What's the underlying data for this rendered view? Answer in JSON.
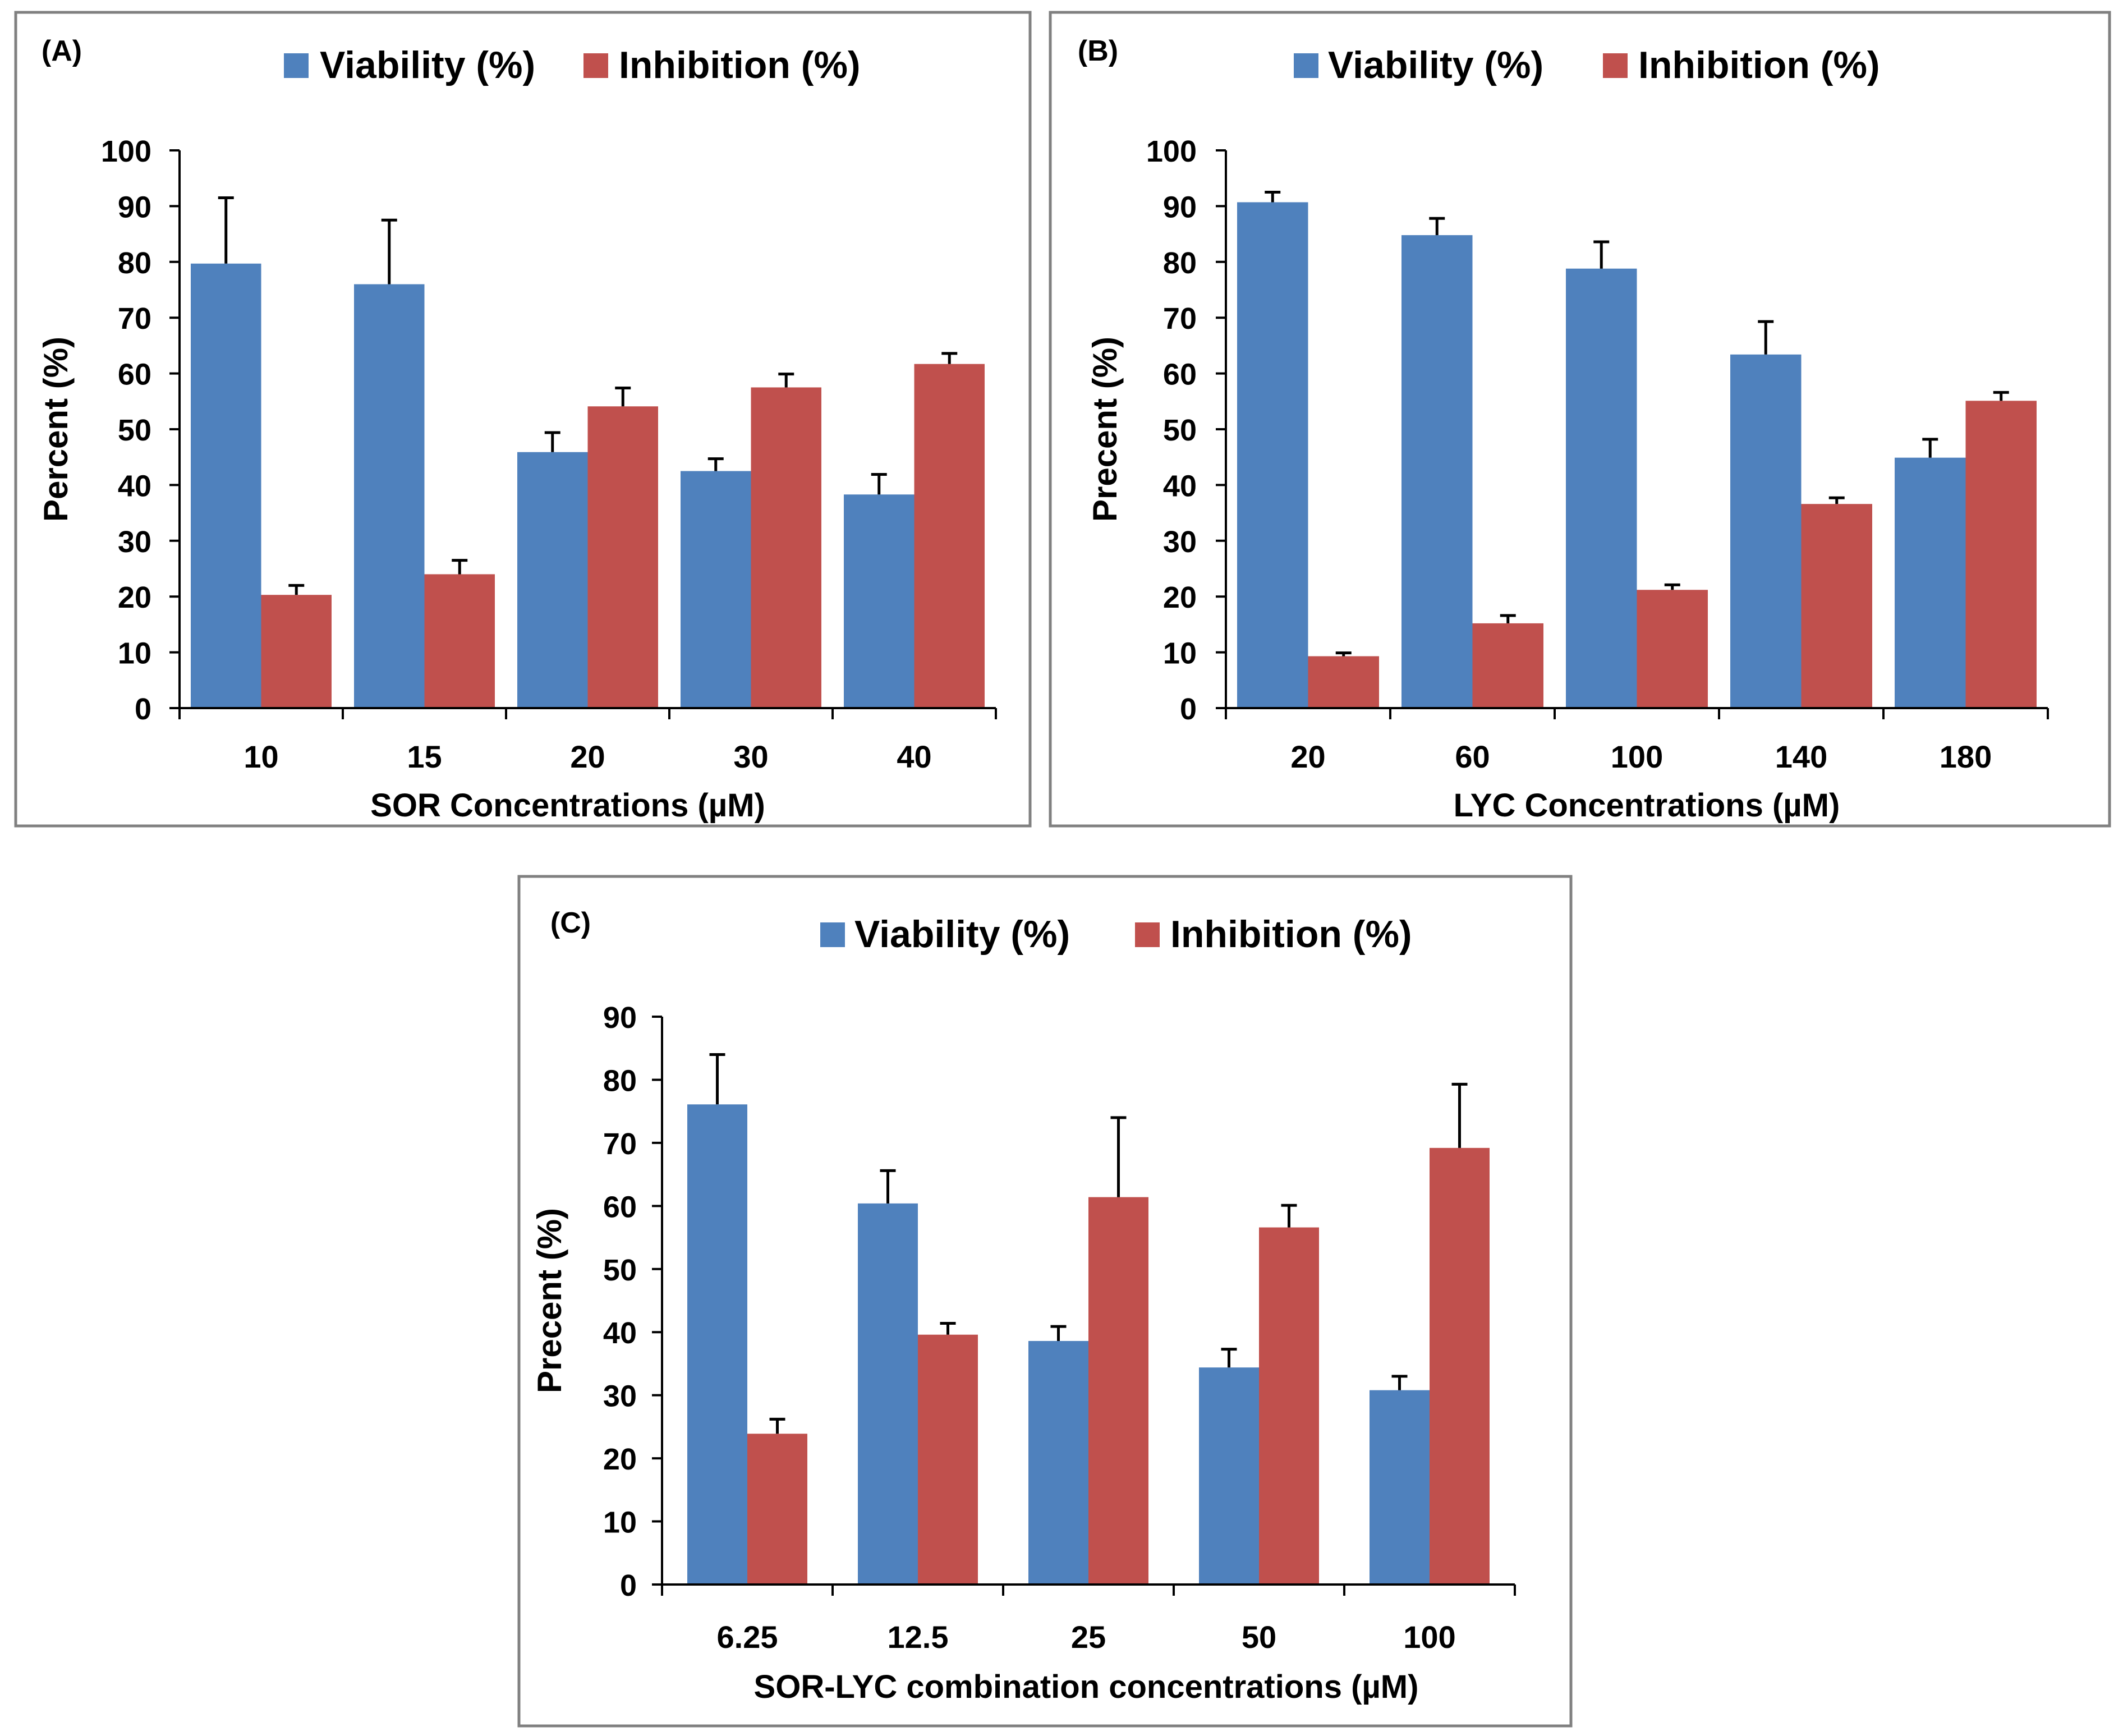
{
  "colors": {
    "viability": "#4F81BD",
    "inhibition": "#C0504D",
    "panel_border": "#808080",
    "axis": "#000000"
  },
  "chart_data": [
    {
      "type": "bar",
      "panel_label": "(A)",
      "xlabel": "SOR Concentrations (µM)",
      "ylabel": "Percent (%)",
      "ylim": [
        0,
        100
      ],
      "yticks": [
        0,
        10,
        20,
        30,
        40,
        50,
        60,
        70,
        80,
        90,
        100
      ],
      "categories": [
        "10",
        "15",
        "20",
        "30",
        "40"
      ],
      "legend_position": "top",
      "series": [
        {
          "name": "Viability (%)",
          "color_key": "viability",
          "values": [
            79.7,
            76.0,
            45.9,
            42.5,
            38.3
          ],
          "errors": [
            11.8,
            11.5,
            3.5,
            2.2,
            3.6
          ]
        },
        {
          "name": "Inhibition (%)",
          "color_key": "inhibition",
          "values": [
            20.3,
            24.0,
            54.1,
            57.5,
            61.7
          ],
          "errors": [
            1.7,
            2.5,
            3.3,
            2.4,
            1.9
          ]
        }
      ]
    },
    {
      "type": "bar",
      "panel_label": "(B)",
      "xlabel": "LYC Concentrations (µM)",
      "ylabel": "Precent (%)",
      "ylim": [
        0,
        100
      ],
      "yticks": [
        0,
        10,
        20,
        30,
        40,
        50,
        60,
        70,
        80,
        90,
        100
      ],
      "categories": [
        "20",
        "60",
        "100",
        "140",
        "180"
      ],
      "legend_position": "top",
      "series": [
        {
          "name": "Viability (%)",
          "color_key": "viability",
          "values": [
            90.7,
            84.8,
            78.8,
            63.4,
            44.9
          ],
          "errors": [
            1.8,
            3.0,
            4.8,
            5.9,
            3.3
          ]
        },
        {
          "name": "Inhibition (%)",
          "color_key": "inhibition",
          "values": [
            9.3,
            15.2,
            21.2,
            36.6,
            55.1
          ],
          "errors": [
            0.6,
            1.4,
            0.9,
            1.1,
            1.5
          ]
        }
      ]
    },
    {
      "type": "bar",
      "panel_label": "(C)",
      "xlabel": "SOR-LYC combination concentrations (µM)",
      "ylabel": "Precent (%)",
      "ylim": [
        0,
        90
      ],
      "yticks": [
        0,
        10,
        20,
        30,
        40,
        50,
        60,
        70,
        80,
        90
      ],
      "categories": [
        "6.25",
        "12.5",
        "25",
        "50",
        "100"
      ],
      "legend_position": "top",
      "series": [
        {
          "name": "Viability (%)",
          "color_key": "viability",
          "values": [
            76.1,
            60.4,
            38.6,
            34.4,
            30.8
          ],
          "errors": [
            7.9,
            5.2,
            2.3,
            2.9,
            2.2
          ]
        },
        {
          "name": "Inhibition (%)",
          "color_key": "inhibition",
          "values": [
            23.9,
            39.6,
            61.4,
            56.6,
            69.2
          ],
          "errors": [
            2.3,
            1.8,
            12.6,
            3.5,
            10.1
          ]
        }
      ]
    }
  ]
}
